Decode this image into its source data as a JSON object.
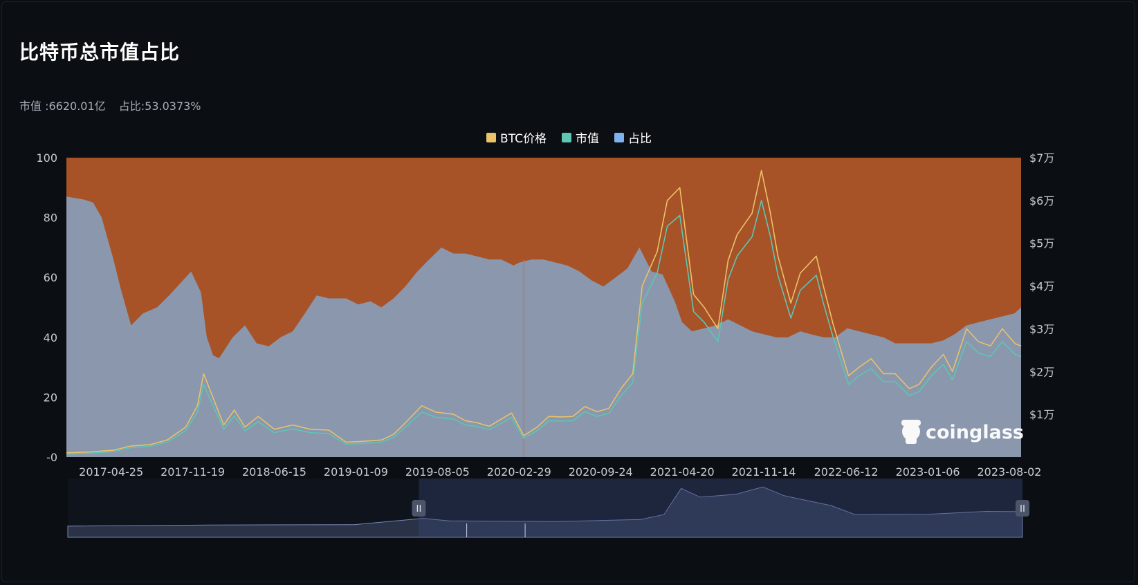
{
  "title": "比特币总市值占比",
  "stats": {
    "market_cap": "市值 :6620.01亿",
    "dominance": "占比:53.0373%"
  },
  "colors": {
    "background": "#0b0e13",
    "total_area": "#a85227",
    "dominance_area": "#8a97ad",
    "btc_price": "#e9c26a",
    "market_cap": "#5ec6b3",
    "dominance_legend": "#7fb1ec"
  },
  "watermark": {
    "text": "coinglass",
    "icon": "coinglass-logo-icon"
  },
  "chart_data": {
    "type": "area",
    "legend": [
      {
        "name": "BTC价格",
        "color": "#e9c26a"
      },
      {
        "name": "市值",
        "color": "#5ec6b3"
      },
      {
        "name": "占比",
        "color": "#7fb1ec"
      }
    ],
    "legend_position": "top-center",
    "grid": false,
    "x_ticks": [
      "2017-04-25",
      "2017-11-19",
      "2018-06-15",
      "2019-01-09",
      "2019-08-05",
      "2020-02-29",
      "2020-09-24",
      "2021-04-20",
      "2021-11-14",
      "2022-06-12",
      "2023-01-06",
      "2023-08-02"
    ],
    "x_range": [
      "2017-01-01",
      "2023-09-01"
    ],
    "y_left": {
      "ticks": [
        "100",
        "80",
        "60",
        "40",
        "20",
        "-0"
      ],
      "range": [
        0,
        100
      ],
      "unit": "%"
    },
    "y_right": {
      "ticks": [
        "$7万",
        "$6万",
        "$5万",
        "$4万",
        "$3万",
        "$2万",
        "$1万"
      ],
      "range": [
        0,
        70000
      ],
      "unit": "USD"
    },
    "series": [
      {
        "name": "占比",
        "axis": "left",
        "x": [
          "2017-01-01",
          "2017-02-15",
          "2017-03-10",
          "2017-04-01",
          "2017-05-01",
          "2017-05-20",
          "2017-06-15",
          "2017-07-15",
          "2017-08-20",
          "2017-09-20",
          "2017-10-25",
          "2017-11-15",
          "2017-12-10",
          "2017-12-25",
          "2018-01-10",
          "2018-01-25",
          "2018-03-01",
          "2018-04-01",
          "2018-05-01",
          "2018-06-01",
          "2018-07-01",
          "2018-08-01",
          "2018-09-01",
          "2018-10-01",
          "2018-11-01",
          "2018-12-15",
          "2019-01-15",
          "2019-02-15",
          "2019-03-15",
          "2019-04-15",
          "2019-05-15",
          "2019-06-15",
          "2019-07-15",
          "2019-08-15",
          "2019-09-15",
          "2019-10-15",
          "2019-11-15",
          "2019-12-15",
          "2020-01-15",
          "2020-02-15",
          "2020-03-01",
          "2020-04-01",
          "2020-05-01",
          "2020-06-01",
          "2020-07-01",
          "2020-08-01",
          "2020-09-01",
          "2020-10-01",
          "2020-11-01",
          "2020-12-01",
          "2021-01-01",
          "2021-02-01",
          "2021-03-01",
          "2021-04-01",
          "2021-04-20",
          "2021-05-15",
          "2021-06-15",
          "2021-07-15",
          "2021-08-15",
          "2021-09-15",
          "2021-10-15",
          "2021-11-15",
          "2021-12-15",
          "2022-01-15",
          "2022-02-15",
          "2022-03-15",
          "2022-04-15",
          "2022-05-15",
          "2022-06-15",
          "2022-07-15",
          "2022-08-15",
          "2022-09-15",
          "2022-10-15",
          "2022-11-15",
          "2022-12-15",
          "2023-01-15",
          "2023-02-15",
          "2023-03-15",
          "2023-04-15",
          "2023-05-15",
          "2023-06-15",
          "2023-07-15",
          "2023-08-15",
          "2023-09-01"
        ],
        "values": [
          87,
          86,
          85,
          80,
          66,
          56,
          44,
          48,
          50,
          54,
          59,
          62,
          55,
          40,
          34,
          33,
          40,
          44,
          38,
          37,
          40,
          42,
          48,
          54,
          53,
          53,
          51,
          52,
          50,
          53,
          57,
          62,
          66,
          70,
          68,
          68,
          67,
          66,
          66,
          64,
          65,
          66,
          66,
          65,
          64,
          62,
          59,
          57,
          60,
          63,
          70,
          62,
          61,
          52,
          45,
          42,
          43,
          44,
          46,
          44,
          42,
          41,
          40,
          40,
          42,
          41,
          40,
          40,
          43,
          42,
          41,
          40,
          38,
          38,
          38,
          38,
          39,
          41,
          44,
          45,
          46,
          47,
          48,
          50
        ]
      },
      {
        "name": "BTC价格",
        "axis": "right",
        "x": [
          "2017-01-01",
          "2017-03-01",
          "2017-05-01",
          "2017-06-15",
          "2017-08-01",
          "2017-09-15",
          "2017-11-01",
          "2017-12-01",
          "2017-12-17",
          "2018-01-05",
          "2018-02-06",
          "2018-03-05",
          "2018-04-01",
          "2018-05-05",
          "2018-06-15",
          "2018-08-01",
          "2018-09-15",
          "2018-11-01",
          "2018-12-15",
          "2019-01-15",
          "2019-03-15",
          "2019-04-15",
          "2019-05-15",
          "2019-06-26",
          "2019-08-01",
          "2019-09-15",
          "2019-10-15",
          "2019-11-15",
          "2019-12-15",
          "2020-02-10",
          "2020-03-12",
          "2020-04-15",
          "2020-05-15",
          "2020-06-15",
          "2020-07-15",
          "2020-08-15",
          "2020-09-15",
          "2020-10-15",
          "2020-11-15",
          "2020-12-15",
          "2021-01-08",
          "2021-02-15",
          "2021-03-13",
          "2021-04-14",
          "2021-05-19",
          "2021-06-15",
          "2021-07-20",
          "2021-08-15",
          "2021-09-07",
          "2021-10-15",
          "2021-11-08",
          "2021-12-01",
          "2021-12-20",
          "2022-01-22",
          "2022-02-15",
          "2022-03-28",
          "2022-04-15",
          "2022-05-10",
          "2022-06-18",
          "2022-07-15",
          "2022-08-15",
          "2022-09-15",
          "2022-10-15",
          "2022-11-20",
          "2022-12-15",
          "2023-01-15",
          "2023-02-15",
          "2023-03-10",
          "2023-04-15",
          "2023-05-15",
          "2023-06-15",
          "2023-07-15",
          "2023-08-17",
          "2023-09-01"
        ],
        "values": [
          1000,
          1200,
          1600,
          2600,
          2900,
          4000,
          7000,
          12000,
          19500,
          15000,
          7500,
          11000,
          7000,
          9500,
          6500,
          7500,
          6500,
          6300,
          3500,
          3600,
          4000,
          5300,
          8000,
          12000,
          10500,
          10000,
          8500,
          8000,
          7200,
          10300,
          5000,
          7000,
          9500,
          9400,
          9500,
          11800,
          10600,
          11400,
          16000,
          19500,
          40000,
          48000,
          60000,
          63000,
          38000,
          35000,
          30000,
          46000,
          52000,
          57000,
          67000,
          57000,
          47000,
          36000,
          43000,
          47000,
          40000,
          31000,
          19000,
          21000,
          23000,
          19500,
          19500,
          16000,
          17000,
          21000,
          24000,
          20000,
          30000,
          27000,
          26000,
          30000,
          26500,
          26000
        ]
      },
      {
        "name": "市值",
        "axis": "right",
        "x": [
          "2017-01-01",
          "2017-03-01",
          "2017-05-01",
          "2017-06-15",
          "2017-08-01",
          "2017-09-15",
          "2017-11-01",
          "2017-12-01",
          "2017-12-17",
          "2018-01-05",
          "2018-02-06",
          "2018-03-05",
          "2018-04-01",
          "2018-05-05",
          "2018-06-15",
          "2018-08-01",
          "2018-09-15",
          "2018-11-01",
          "2018-12-15",
          "2019-01-15",
          "2019-03-15",
          "2019-04-15",
          "2019-05-15",
          "2019-06-26",
          "2019-08-01",
          "2019-09-15",
          "2019-10-15",
          "2019-11-15",
          "2019-12-15",
          "2020-02-10",
          "2020-03-12",
          "2020-04-15",
          "2020-05-15",
          "2020-06-15",
          "2020-07-15",
          "2020-08-15",
          "2020-09-15",
          "2020-10-15",
          "2020-11-15",
          "2020-12-15",
          "2021-01-08",
          "2021-02-15",
          "2021-03-13",
          "2021-04-14",
          "2021-05-19",
          "2021-06-15",
          "2021-07-20",
          "2021-08-15",
          "2021-09-07",
          "2021-10-15",
          "2021-11-08",
          "2021-12-01",
          "2021-12-20",
          "2022-01-22",
          "2022-02-15",
          "2022-03-28",
          "2022-04-15",
          "2022-05-10",
          "2022-06-18",
          "2022-07-15",
          "2022-08-15",
          "2022-09-15",
          "2022-10-15",
          "2022-11-20",
          "2022-12-15",
          "2023-01-15",
          "2023-02-15",
          "2023-03-10",
          "2023-04-15",
          "2023-05-15",
          "2023-06-15",
          "2023-07-15",
          "2023-08-17",
          "2023-09-01"
        ],
        "values": [
          700,
          900,
          1300,
          2200,
          2500,
          3500,
          6200,
          10500,
          17000,
          13000,
          6500,
          9600,
          6100,
          8300,
          5700,
          6600,
          5700,
          5500,
          3000,
          3100,
          3500,
          4600,
          7000,
          10500,
          9300,
          8900,
          7500,
          7100,
          6400,
          9200,
          4400,
          6200,
          8500,
          8400,
          8500,
          10600,
          9500,
          10200,
          14300,
          17500,
          36000,
          43000,
          54000,
          56500,
          34000,
          31500,
          27000,
          41500,
          47000,
          51500,
          60000,
          51500,
          42500,
          32500,
          39000,
          42500,
          36000,
          28000,
          17000,
          19000,
          20700,
          17600,
          17600,
          14400,
          15300,
          19000,
          21700,
          18000,
          27000,
          24300,
          23500,
          27000,
          24000,
          23500
        ]
      }
    ],
    "minimap": {
      "x": [
        "2017-01-01",
        "2018-01-01",
        "2019-01-01",
        "2019-06-26",
        "2019-09-01",
        "2020-01-01",
        "2020-06-01",
        "2021-01-01",
        "2021-03-01",
        "2021-04-14",
        "2021-06-01",
        "2021-09-01",
        "2021-11-08",
        "2022-01-01",
        "2022-05-01",
        "2022-07-01",
        "2023-01-01",
        "2023-06-01",
        "2023-09-01"
      ],
      "values": [
        500,
        900,
        1000,
        3200,
        2300,
        2200,
        2100,
        2800,
        4500,
        13500,
        10500,
        11500,
        14000,
        11000,
        7600,
        4500,
        4600,
        5600,
        5500
      ],
      "window": [
        "2019-06-15",
        "2023-09-01"
      ]
    }
  }
}
